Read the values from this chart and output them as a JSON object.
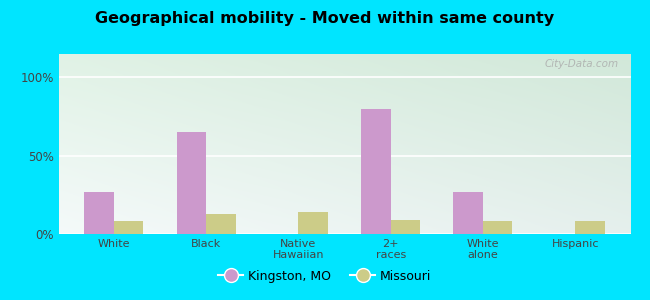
{
  "title": "Geographical mobility - Moved within same county",
  "categories": [
    "White",
    "Black",
    "Native\nHawaiian",
    "2+\nraces",
    "White\nalone",
    "Hispanic"
  ],
  "kingston_values": [
    27,
    65,
    0,
    80,
    27,
    0
  ],
  "missouri_values": [
    8,
    13,
    14,
    9,
    8,
    8
  ],
  "kingston_color": "#cc99cc",
  "missouri_color": "#cccc88",
  "legend_kingston": "Kingston, MO",
  "legend_missouri": "Missouri",
  "yticks": [
    0,
    50,
    100
  ],
  "yticklabels": [
    "0%",
    "50%",
    "100%"
  ],
  "ylim": [
    0,
    115
  ],
  "bar_width": 0.32,
  "outer_bg": "#00e5ff",
  "watermark": "City-Data.com",
  "grid_color": "#ffffff",
  "bg_colors": [
    "#b8e8d0",
    "#e8f5e8",
    "#f5fff8"
  ]
}
